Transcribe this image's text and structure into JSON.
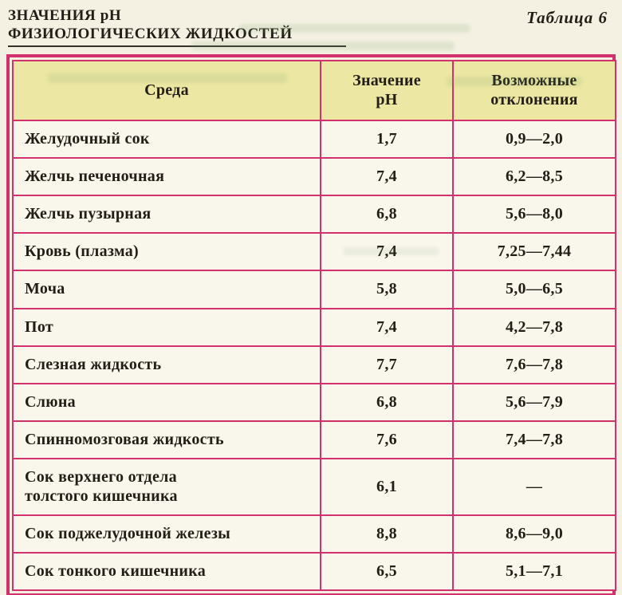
{
  "page": {
    "title_line1": "ЗНАЧЕНИЯ pH",
    "title_line2": "ФИЗИОЛОГИЧЕСКИХ ЖИДКОСТЕЙ",
    "table_label": "Таблица 6"
  },
  "colors": {
    "border": "#d2316d",
    "header_bg": "#ece7a2",
    "page_bg": "#f5f1e2",
    "ink": "#221d16"
  },
  "chart_data": {
    "type": "table",
    "title": "Значения pH физиологических жидкостей",
    "columns": [
      "Среда",
      "Значение pH",
      "Возможные отклонения"
    ],
    "rows": [
      [
        "Желудочный сок",
        "1,7",
        "0,9—2,0"
      ],
      [
        "Желчь печеночная",
        "7,4",
        "6,2—8,5"
      ],
      [
        "Желчь пузырная",
        "6,8",
        "5,6—8,0"
      ],
      [
        "Кровь (плазма)",
        "7,4",
        "7,25—7,44"
      ],
      [
        "Моча",
        "5,8",
        "5,0—6,5"
      ],
      [
        "Пот",
        "7,4",
        "4,2—7,8"
      ],
      [
        "Слезная жидкость",
        "7,7",
        "7,6—7,8"
      ],
      [
        "Слюна",
        "6,8",
        "5,6—7,9"
      ],
      [
        "Спинномозговая жидкость",
        "7,6",
        "7,4—7,8"
      ],
      [
        "Сок верхнего отдела\nтолстого кишечника",
        "6,1",
        "—"
      ],
      [
        "Сок поджелудочной железы",
        "8,8",
        "8,6—9,0"
      ],
      [
        "Сок тонкого кишечника",
        "6,5",
        "5,1—7,1"
      ]
    ]
  }
}
